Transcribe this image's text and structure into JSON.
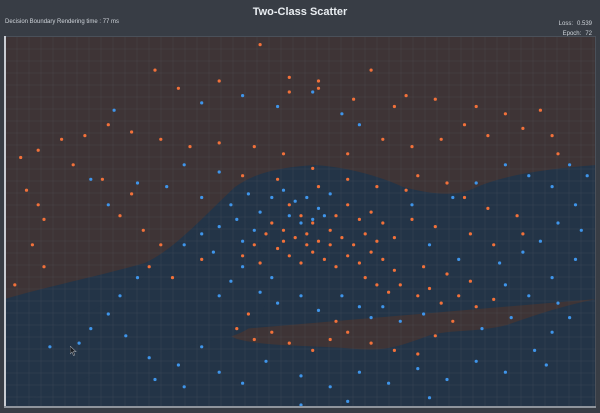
{
  "window": {
    "title": "Two-Class Scatter",
    "subtitle": "Decision Boundary Rendering time : 77 ms",
    "loss_label": "Loss:",
    "loss_value": "0.539",
    "epoch_label": "Epoch:",
    "epoch_value": "72"
  },
  "colors": {
    "class_a": "#f2713a",
    "class_b": "#3f95ea",
    "region_a": "#3e3436",
    "region_b": "#233447",
    "grid": "#5b616a",
    "background": "#383d45"
  },
  "chart_data": {
    "type": "scatter",
    "title": "Two-Class Scatter",
    "xlim": [
      0,
      1
    ],
    "ylim": [
      0,
      1
    ],
    "grid": true,
    "series": [
      {
        "points": [
          [
            0.43,
            0.99
          ],
          [
            0.25,
            0.92
          ],
          [
            0.29,
            0.87
          ],
          [
            0.36,
            0.89
          ],
          [
            0.48,
            0.9
          ],
          [
            0.53,
            0.89
          ],
          [
            0.62,
            0.92
          ],
          [
            0.48,
            0.86
          ],
          [
            0.53,
            0.87
          ],
          [
            0.59,
            0.84
          ],
          [
            0.66,
            0.82
          ],
          [
            0.68,
            0.85
          ],
          [
            0.73,
            0.84
          ],
          [
            0.8,
            0.82
          ],
          [
            0.85,
            0.8
          ],
          [
            0.91,
            0.81
          ],
          [
            0.93,
            0.74
          ],
          [
            0.94,
            0.69
          ],
          [
            0.88,
            0.76
          ],
          [
            0.82,
            0.74
          ],
          [
            0.78,
            0.77
          ],
          [
            0.74,
            0.73
          ],
          [
            0.69,
            0.71
          ],
          [
            0.64,
            0.73
          ],
          [
            0.58,
            0.69
          ],
          [
            0.52,
            0.65
          ],
          [
            0.47,
            0.69
          ],
          [
            0.42,
            0.71
          ],
          [
            0.36,
            0.72
          ],
          [
            0.31,
            0.71
          ],
          [
            0.26,
            0.73
          ],
          [
            0.21,
            0.75
          ],
          [
            0.17,
            0.77
          ],
          [
            0.13,
            0.74
          ],
          [
            0.09,
            0.73
          ],
          [
            0.05,
            0.7
          ],
          [
            0.02,
            0.68
          ],
          [
            0.03,
            0.59
          ],
          [
            0.05,
            0.55
          ],
          [
            0.06,
            0.51
          ],
          [
            0.04,
            0.44
          ],
          [
            0.06,
            0.38
          ],
          [
            0.01,
            0.33
          ],
          [
            0.11,
            0.66
          ],
          [
            0.16,
            0.62
          ],
          [
            0.21,
            0.58
          ],
          [
            0.19,
            0.52
          ],
          [
            0.23,
            0.48
          ],
          [
            0.26,
            0.44
          ],
          [
            0.24,
            0.38
          ],
          [
            0.28,
            0.35
          ],
          [
            0.33,
            0.4
          ],
          [
            0.4,
            0.63
          ],
          [
            0.46,
            0.62
          ],
          [
            0.53,
            0.6
          ],
          [
            0.58,
            0.62
          ],
          [
            0.63,
            0.6
          ],
          [
            0.68,
            0.59
          ],
          [
            0.7,
            0.63
          ],
          [
            0.75,
            0.61
          ],
          [
            0.78,
            0.57
          ],
          [
            0.82,
            0.54
          ],
          [
            0.87,
            0.52
          ],
          [
            0.88,
            0.47
          ],
          [
            0.83,
            0.44
          ],
          [
            0.79,
            0.47
          ],
          [
            0.73,
            0.49
          ],
          [
            0.69,
            0.51
          ],
          [
            0.66,
            0.46
          ],
          [
            0.45,
            0.5
          ],
          [
            0.47,
            0.48
          ],
          [
            0.49,
            0.46
          ],
          [
            0.51,
            0.47
          ],
          [
            0.53,
            0.45
          ],
          [
            0.55,
            0.48
          ],
          [
            0.57,
            0.46
          ],
          [
            0.59,
            0.44
          ],
          [
            0.61,
            0.47
          ],
          [
            0.63,
            0.45
          ],
          [
            0.6,
            0.51
          ],
          [
            0.62,
            0.53
          ],
          [
            0.64,
            0.5
          ],
          [
            0.58,
            0.55
          ],
          [
            0.56,
            0.52
          ],
          [
            0.52,
            0.5
          ],
          [
            0.5,
            0.52
          ],
          [
            0.48,
            0.55
          ],
          [
            0.46,
            0.43
          ],
          [
            0.48,
            0.41
          ],
          [
            0.5,
            0.39
          ],
          [
            0.52,
            0.42
          ],
          [
            0.54,
            0.4
          ],
          [
            0.56,
            0.38
          ],
          [
            0.58,
            0.41
          ],
          [
            0.6,
            0.39
          ],
          [
            0.62,
            0.42
          ],
          [
            0.64,
            0.4
          ],
          [
            0.66,
            0.37
          ],
          [
            0.55,
            0.44
          ],
          [
            0.51,
            0.44
          ],
          [
            0.47,
            0.45
          ],
          [
            0.44,
            0.47
          ],
          [
            0.42,
            0.44
          ],
          [
            0.4,
            0.41
          ],
          [
            0.43,
            0.39
          ],
          [
            0.61,
            0.35
          ],
          [
            0.63,
            0.33
          ],
          [
            0.65,
            0.31
          ],
          [
            0.67,
            0.33
          ],
          [
            0.7,
            0.3
          ],
          [
            0.72,
            0.32
          ],
          [
            0.74,
            0.28
          ],
          [
            0.77,
            0.3
          ],
          [
            0.8,
            0.27
          ],
          [
            0.83,
            0.29
          ],
          [
            0.79,
            0.34
          ],
          [
            0.75,
            0.36
          ],
          [
            0.71,
            0.38
          ],
          [
            0.39,
            0.21
          ],
          [
            0.42,
            0.18
          ],
          [
            0.45,
            0.2
          ],
          [
            0.48,
            0.17
          ],
          [
            0.52,
            0.15
          ],
          [
            0.55,
            0.18
          ],
          [
            0.58,
            0.2
          ],
          [
            0.62,
            0.17
          ],
          [
            0.66,
            0.15
          ],
          [
            0.7,
            0.14
          ],
          [
            0.73,
            0.19
          ],
          [
            0.76,
            0.23
          ],
          [
            0.41,
            0.25
          ],
          [
            0.56,
            0.23
          ]
        ]
      },
      {
        "points": [
          [
            0.4,
            0.85
          ],
          [
            0.46,
            0.82
          ],
          [
            0.52,
            0.86
          ],
          [
            0.57,
            0.8
          ],
          [
            0.33,
            0.83
          ],
          [
            0.18,
            0.81
          ],
          [
            0.6,
            0.77
          ],
          [
            0.3,
            0.66
          ],
          [
            0.36,
            0.64
          ],
          [
            0.14,
            0.62
          ],
          [
            0.17,
            0.55
          ],
          [
            0.22,
            0.61
          ],
          [
            0.27,
            0.6
          ],
          [
            0.33,
            0.57
          ],
          [
            0.38,
            0.55
          ],
          [
            0.41,
            0.58
          ],
          [
            0.43,
            0.53
          ],
          [
            0.39,
            0.51
          ],
          [
            0.36,
            0.49
          ],
          [
            0.33,
            0.47
          ],
          [
            0.3,
            0.44
          ],
          [
            0.35,
            0.42
          ],
          [
            0.4,
            0.45
          ],
          [
            0.42,
            0.48
          ],
          [
            0.45,
            0.57
          ],
          [
            0.47,
            0.59
          ],
          [
            0.49,
            0.56
          ],
          [
            0.51,
            0.57
          ],
          [
            0.53,
            0.54
          ],
          [
            0.55,
            0.58
          ],
          [
            0.5,
            0.5
          ],
          [
            0.52,
            0.51
          ],
          [
            0.54,
            0.52
          ],
          [
            0.48,
            0.52
          ],
          [
            0.4,
            0.38
          ],
          [
            0.38,
            0.34
          ],
          [
            0.43,
            0.31
          ],
          [
            0.46,
            0.28
          ],
          [
            0.5,
            0.3
          ],
          [
            0.53,
            0.26
          ],
          [
            0.57,
            0.3
          ],
          [
            0.6,
            0.27
          ],
          [
            0.62,
            0.24
          ],
          [
            0.45,
            0.35
          ],
          [
            0.36,
            0.3
          ],
          [
            0.76,
            0.57
          ],
          [
            0.8,
            0.61
          ],
          [
            0.85,
            0.66
          ],
          [
            0.89,
            0.63
          ],
          [
            0.93,
            0.6
          ],
          [
            0.96,
            0.66
          ],
          [
            0.99,
            0.63
          ],
          [
            0.97,
            0.55
          ],
          [
            0.98,
            0.48
          ],
          [
            0.97,
            0.4
          ],
          [
            0.93,
            0.35
          ],
          [
            0.89,
            0.3
          ],
          [
            0.85,
            0.33
          ],
          [
            0.84,
            0.39
          ],
          [
            0.88,
            0.42
          ],
          [
            0.91,
            0.45
          ],
          [
            0.94,
            0.5
          ],
          [
            0.22,
            0.35
          ],
          [
            0.19,
            0.3
          ],
          [
            0.17,
            0.25
          ],
          [
            0.14,
            0.21
          ],
          [
            0.12,
            0.17
          ],
          [
            0.2,
            0.19
          ],
          [
            0.24,
            0.13
          ],
          [
            0.29,
            0.11
          ],
          [
            0.33,
            0.16
          ],
          [
            0.36,
            0.09
          ],
          [
            0.4,
            0.06
          ],
          [
            0.44,
            0.12
          ],
          [
            0.3,
            0.05
          ],
          [
            0.25,
            0.07
          ],
          [
            0.07,
            0.16
          ],
          [
            0.5,
            0.08
          ],
          [
            0.55,
            0.05
          ],
          [
            0.6,
            0.09
          ],
          [
            0.65,
            0.06
          ],
          [
            0.7,
            0.1
          ],
          [
            0.75,
            0.07
          ],
          [
            0.8,
            0.12
          ],
          [
            0.85,
            0.09
          ],
          [
            0.9,
            0.15
          ],
          [
            0.93,
            0.2
          ],
          [
            0.96,
            0.24
          ],
          [
            0.92,
            0.11
          ],
          [
            0.72,
            0.02
          ],
          [
            0.58,
            0.01
          ],
          [
            0.5,
            0.0
          ],
          [
            0.67,
            0.23
          ],
          [
            0.71,
            0.25
          ],
          [
            0.64,
            0.27
          ],
          [
            0.81,
            0.21
          ],
          [
            0.86,
            0.24
          ],
          [
            0.94,
            0.28
          ],
          [
            0.69,
            0.55
          ],
          [
            0.72,
            0.44
          ],
          [
            0.77,
            0.4
          ]
        ]
      }
    ]
  }
}
